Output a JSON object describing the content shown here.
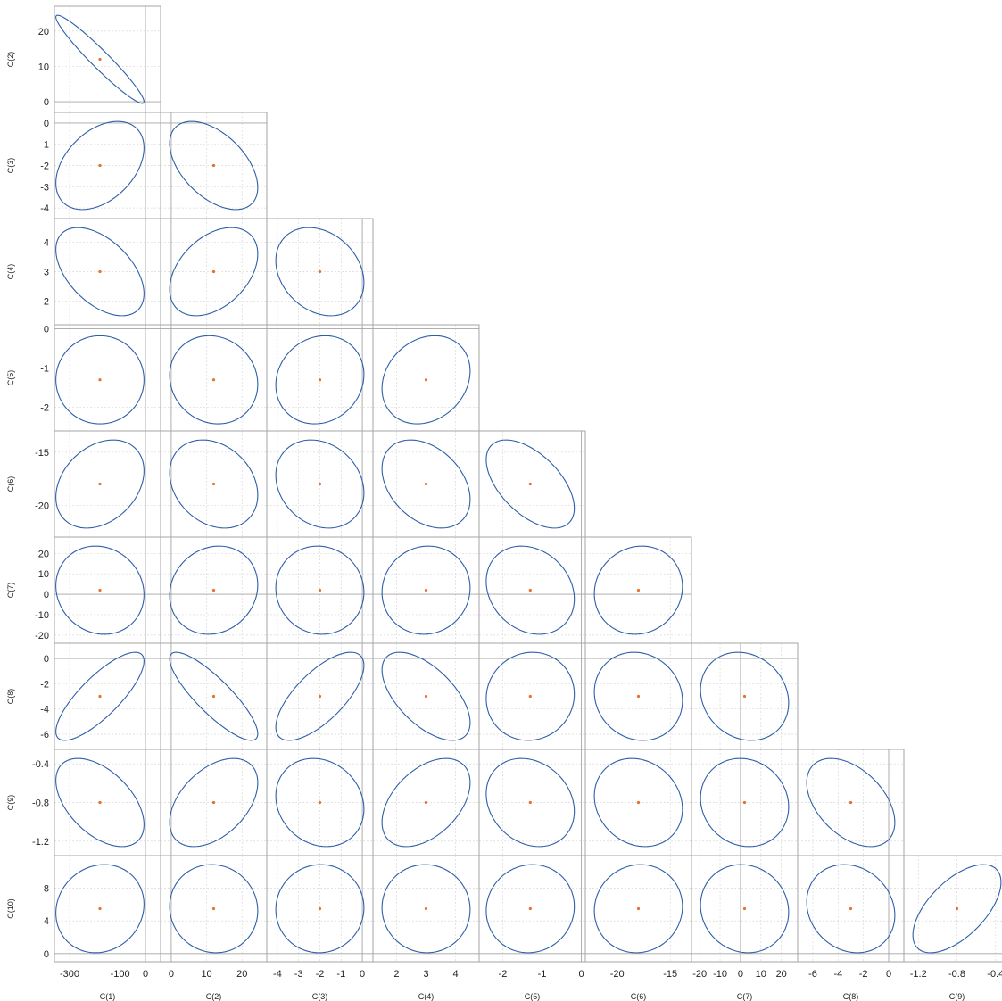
{
  "chart_data": {
    "type": "scatter",
    "title": "",
    "plot_kind": "confidence-ellipse-matrix",
    "colors": {
      "ellipse": "#2e5fa8",
      "center": "#e8722c",
      "frame": "#a6a6a6",
      "grid": "#d9d9d9",
      "zero_line": "#a6a6a6"
    },
    "grid": true,
    "variables": [
      {
        "name": "C(1)",
        "center": -180,
        "range": [
          -360,
          60
        ],
        "ticks": [
          -300,
          -100,
          0
        ],
        "tick_labels": [
          "-300",
          "-100",
          "0"
        ]
      },
      {
        "name": "C(2)",
        "center": 12,
        "range": [
          -3,
          27
        ],
        "ticks": [
          0,
          10,
          20
        ],
        "tick_labels": [
          "0",
          "10",
          "20"
        ]
      },
      {
        "name": "C(3)",
        "center": -2,
        "range": [
          -4.5,
          0.5
        ],
        "ticks": [
          -4,
          -3,
          -2,
          -1,
          0
        ],
        "tick_labels": [
          "-4",
          "-3",
          "-2",
          "-1",
          "0"
        ]
      },
      {
        "name": "C(4)",
        "center": 3,
        "range": [
          1.2,
          4.8
        ],
        "ticks": [
          2,
          3,
          4
        ],
        "tick_labels": [
          "2",
          "3",
          "4"
        ]
      },
      {
        "name": "C(5)",
        "center": -1.3,
        "range": [
          -2.6,
          0.1
        ],
        "ticks": [
          -2,
          -1,
          0
        ],
        "tick_labels": [
          "-2",
          "-1",
          "0"
        ]
      },
      {
        "name": "C(6)",
        "center": -18,
        "range": [
          -23,
          -13
        ],
        "ticks": [
          -20,
          -15
        ],
        "tick_labels": [
          "-20",
          "-15"
        ]
      },
      {
        "name": "C(7)",
        "center": 2,
        "range": [
          -24,
          28
        ],
        "ticks": [
          -20,
          -10,
          0,
          10,
          20
        ],
        "tick_labels": [
          "-20",
          "-10",
          "0",
          "10",
          "20"
        ]
      },
      {
        "name": "C(8)",
        "center": -3,
        "range": [
          -7.2,
          1.2
        ],
        "ticks": [
          -6,
          -4,
          -2,
          0
        ],
        "tick_labels": [
          "-6",
          "-4",
          "-2",
          "0"
        ]
      },
      {
        "name": "C(9)",
        "center": -0.8,
        "range": [
          -1.35,
          -0.25
        ],
        "ticks": [
          -1.2,
          -0.8,
          -0.4
        ],
        "tick_labels": [
          "-1.2",
          "-0.8",
          "-0.4"
        ]
      },
      {
        "name": "C(10)",
        "center": 5.5,
        "range": [
          -1,
          12
        ],
        "ticks": [
          0,
          4,
          8
        ],
        "tick_labels": [
          "0",
          "4",
          "8"
        ]
      }
    ],
    "correlations": [
      [
        null,
        null,
        null,
        null,
        null,
        null,
        null,
        null,
        null,
        null
      ],
      [
        -0.96,
        null,
        null,
        null,
        null,
        null,
        null,
        null,
        null,
        null
      ],
      [
        0.4,
        -0.5,
        null,
        null,
        null,
        null,
        null,
        null,
        null,
        null
      ],
      [
        -0.5,
        0.4,
        -0.25,
        null,
        null,
        null,
        null,
        null,
        null,
        null
      ],
      [
        0.0,
        -0.1,
        0.12,
        0.2,
        null,
        null,
        null,
        null,
        null,
        null
      ],
      [
        0.3,
        -0.25,
        -0.2,
        -0.35,
        -0.55,
        null,
        null,
        null,
        null,
        null
      ],
      [
        -0.1,
        0.12,
        -0.05,
        0.05,
        -0.2,
        0.08,
        null,
        null,
        null,
        null
      ],
      [
        0.8,
        -0.85,
        0.7,
        -0.6,
        0.05,
        -0.1,
        -0.15,
        null,
        null,
        null
      ],
      [
        -0.5,
        0.45,
        -0.15,
        0.45,
        -0.2,
        -0.15,
        -0.1,
        -0.45,
        null,
        null
      ],
      [
        0.1,
        -0.05,
        0.02,
        -0.02,
        0.05,
        0.05,
        -0.08,
        -0.15,
        0.6,
        null
      ]
    ]
  }
}
